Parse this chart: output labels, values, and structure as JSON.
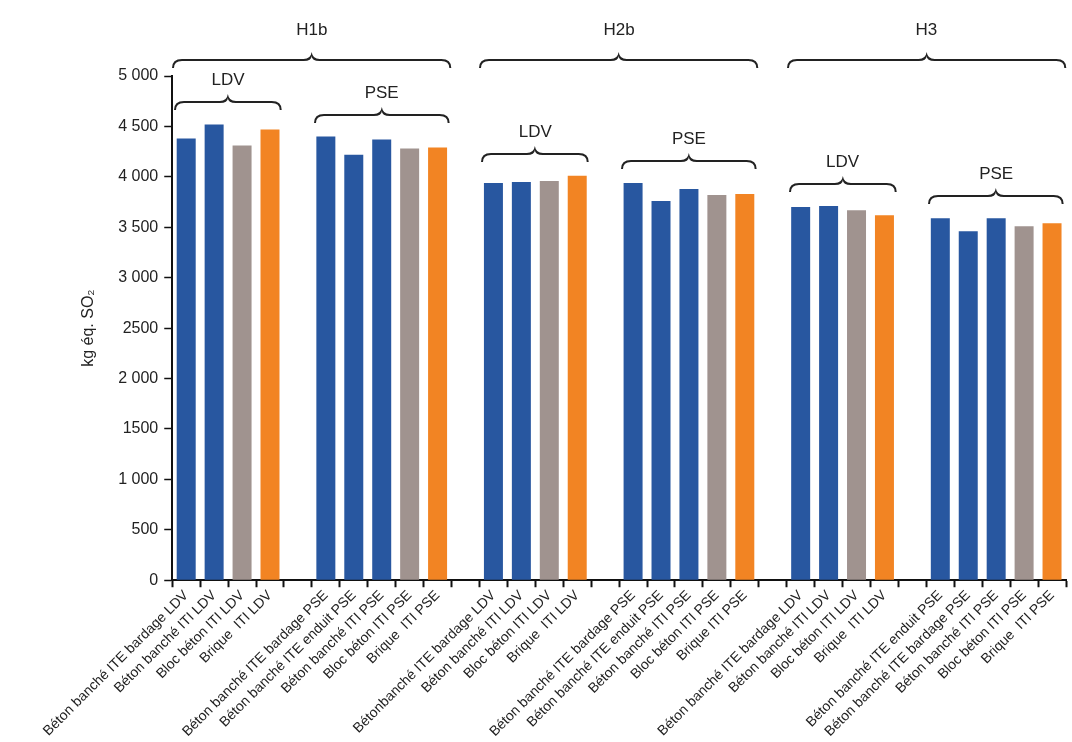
{
  "chart_data": {
    "type": "bar",
    "ylabel": "kg éq. SO₂",
    "categories": [
      "Béton banché ITE bardage LDV",
      "Béton banché ITI LDV",
      "Bloc béton ITI LDV",
      "Brique  ITI LDV",
      null,
      "Béton banché ITE bardage PSE",
      "Béton banché ITE enduit PSE",
      "Béton banché ITI PSE",
      "Bloc béton ITI PSE",
      "Brique  ITI PSE",
      null,
      "Bétonbanché ITE bardage LDV",
      "Béton banché ITI LDV",
      "Bloc béton ITI LDV",
      "Brique  ITI LDV",
      null,
      "Béton banché ITE bardage PSE",
      "Béton banché ITE enduit PSE",
      "Béton banché ITI PSE",
      "Bloc béton ITI PSE",
      "Brique ITI PSE",
      null,
      "Béton banché ITE bardage LDV",
      "Béton banché ITI LDV",
      "Bloc béton ITI LDV",
      "Brique  ITI LDV",
      null,
      "Béton banché ITE enduit PSE",
      "Béton banché ITE bardage PSE",
      "Béton banché ITI PSE",
      "Bloc béton ITI PSE",
      "Brique  ITI PSE"
    ],
    "values": [
      4380,
      4520,
      4310,
      4470,
      null,
      4400,
      4220,
      4370,
      4280,
      4290,
      null,
      3940,
      3950,
      3960,
      4010,
      null,
      3940,
      3760,
      3880,
      3820,
      3830,
      null,
      3700,
      3710,
      3670,
      3620,
      null,
      3590,
      3460,
      3590,
      3510,
      3540
    ],
    "colors": [
      "#2857a0",
      "#2857a0",
      "#a0938f",
      "#f28423",
      null,
      "#2857a0",
      "#2857a0",
      "#2857a0",
      "#a0938f",
      "#f28423",
      null,
      "#2857a0",
      "#2857a0",
      "#a0938f",
      "#f28423",
      null,
      "#2857a0",
      "#2857a0",
      "#2857a0",
      "#a0938f",
      "#f28423",
      null,
      "#2857a0",
      "#2857a0",
      "#a0938f",
      "#f28423",
      null,
      "#2857a0",
      "#2857a0",
      "#2857a0",
      "#a0938f",
      "#f28423"
    ],
    "ylim": [
      0,
      5000
    ],
    "yticks": [
      0,
      500,
      {
        "value": 1000,
        "label": "1 000"
      },
      1500,
      {
        "value": 2000,
        "label": "2 000"
      },
      2500,
      {
        "value": 3000,
        "label": "3 000"
      },
      {
        "value": 3500,
        "label": "3 500"
      },
      {
        "value": 4000,
        "label": "4 000"
      },
      {
        "value": 4500,
        "label": "4 500"
      },
      {
        "value": 5000,
        "label": "5 000"
      }
    ],
    "grid": false,
    "legend": false,
    "annotations": [
      "H1b",
      "LDV",
      "PSE",
      "H2b",
      "LDV",
      "PSE",
      "H3",
      "LDV",
      "PSE"
    ]
  }
}
